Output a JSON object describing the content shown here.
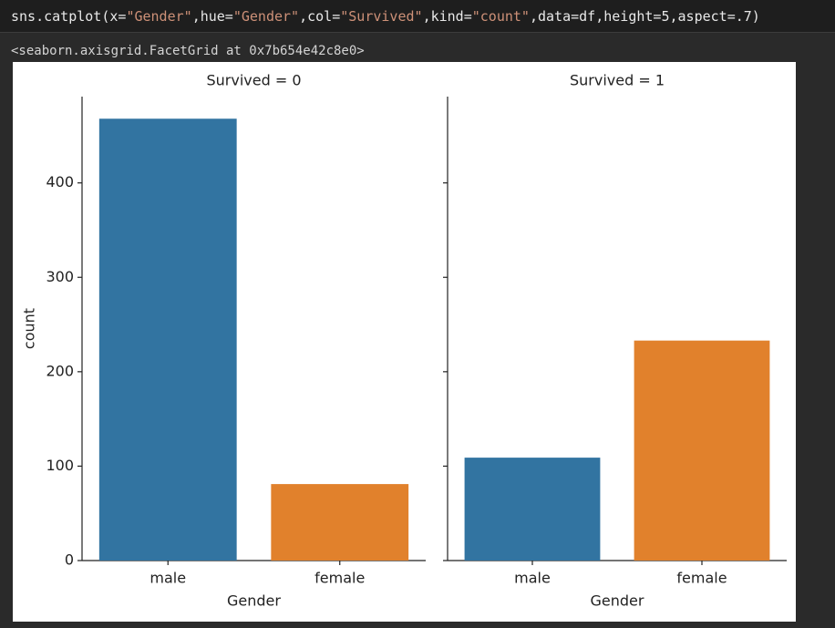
{
  "code": {
    "parts": [
      "sns.catplot(x=",
      "\"Gender\"",
      ",hue=",
      "\"Gender\"",
      ",col=",
      "\"Survived\"",
      ",kind=",
      "\"count\"",
      ",data=df,height=5,aspect=.7)"
    ]
  },
  "output_text": "<seaborn.axisgrid.FacetGrid at 0x7b654e42c8e0>",
  "chart_data": [
    {
      "type": "bar",
      "title": "Survived = 0",
      "xlabel": "Gender",
      "ylabel": "count",
      "categories": [
        "male",
        "female"
      ],
      "values": [
        468,
        81
      ],
      "colors": [
        "#3274a1",
        "#e1812c"
      ],
      "ylim": [
        0,
        491.4
      ],
      "yticks": [
        0,
        100,
        200,
        300,
        400
      ]
    },
    {
      "type": "bar",
      "title": "Survived = 1",
      "xlabel": "Gender",
      "categories": [
        "male",
        "female"
      ],
      "values": [
        109,
        233
      ],
      "colors": [
        "#3274a1",
        "#e1812c"
      ],
      "ylim": [
        0,
        491.4
      ],
      "yticks": [
        0,
        100,
        200,
        300,
        400
      ]
    }
  ]
}
